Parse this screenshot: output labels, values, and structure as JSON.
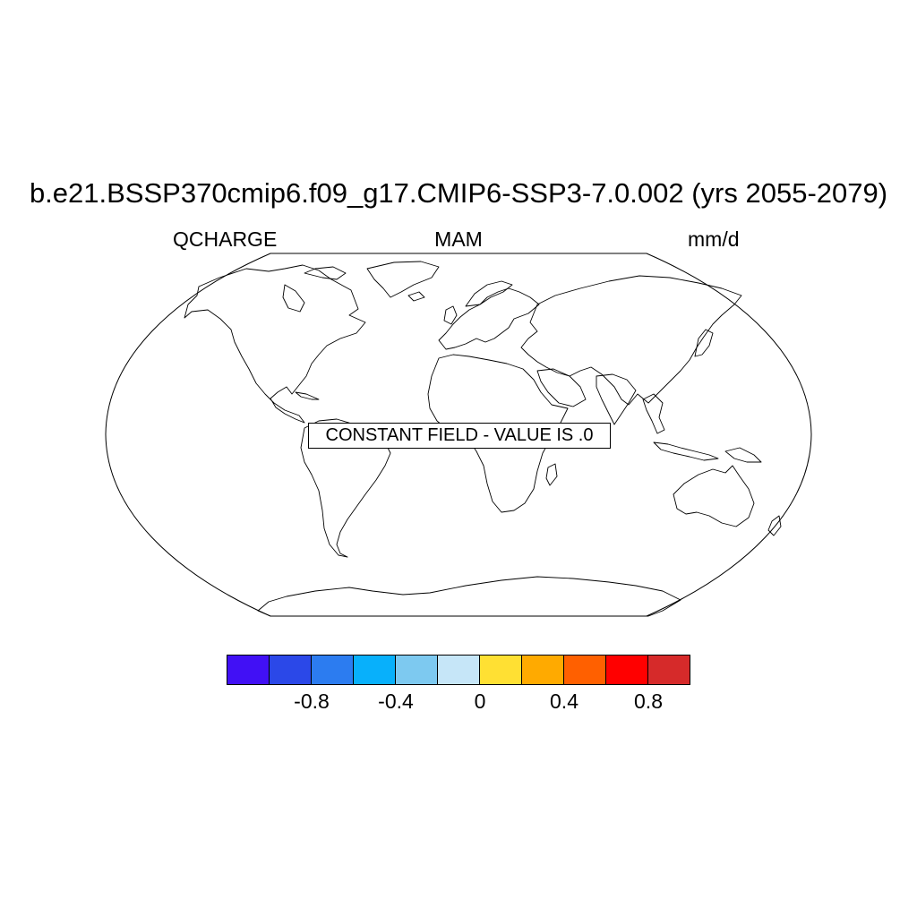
{
  "figure": {
    "title": "b.e21.BSSP370cmip6.f09_g17.CMIP6-SSP3-7.0.002 (yrs 2055-2079)",
    "variable": "QCHARGE",
    "season": "MAM",
    "units": "mm/d",
    "message": "CONSTANT FIELD - VALUE IS .0"
  },
  "map": {
    "projection": "Robinson",
    "field_value": 0,
    "fill": "none",
    "coastline_color": "#000000"
  },
  "colorbar": {
    "colors": [
      "#4110f5",
      "#2b48e8",
      "#2c7cf0",
      "#08b0fb",
      "#7dc9f0",
      "#c6e6f8",
      "#ffe033",
      "#ffaa00",
      "#ff6000",
      "#ff0000",
      "#d62a2a"
    ],
    "tick_labels": [
      "-0.8",
      "-0.4",
      "0",
      "0.4",
      "0.8"
    ]
  }
}
